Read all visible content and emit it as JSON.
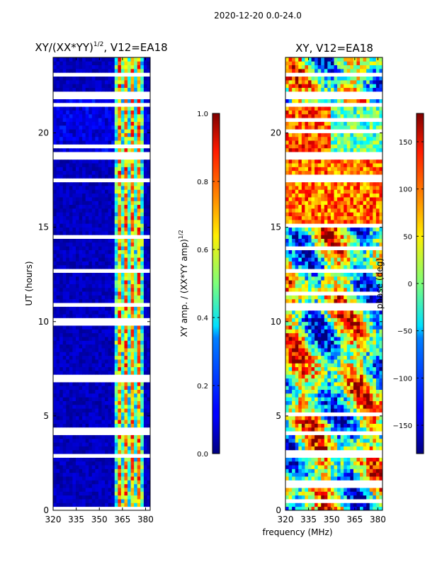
{
  "suptitle": "2020-12-20 0.0-24.0",
  "xlabel_shared": "frequency (MHz)",
  "chart_data": [
    {
      "type": "heatmap",
      "title_main": "XY/(XX*YY)",
      "title_sup": "1/2",
      "title_tail": ", V12=EA18",
      "ylabel": "UT (hours)",
      "xlim": [
        320,
        383
      ],
      "ylim": [
        0,
        24
      ],
      "xticks": [
        320,
        335,
        350,
        365,
        380
      ],
      "yticks": [
        0,
        5,
        10,
        15,
        20
      ],
      "colorbar": {
        "label_main": "XY amp. / (XX*YY amp)",
        "label_sup": "1/2",
        "range": [
          0.0,
          1.0
        ],
        "ticks": [
          "0.0",
          "0.2",
          "0.4",
          "0.6",
          "0.8",
          "1.0"
        ],
        "tick_values": [
          0.0,
          0.2,
          0.4,
          0.6,
          0.8,
          1.0
        ],
        "colormap": "jet"
      },
      "gap_bands_hours": [
        [
          18.6,
          19.0
        ],
        [
          21.8,
          22.2
        ],
        [
          23.0,
          23.1
        ],
        [
          12.7,
          12.85
        ],
        [
          10.8,
          10.9
        ],
        [
          2.8,
          2.95
        ]
      ],
      "bright_channel_band_mhz": [
        360,
        378
      ]
    },
    {
      "type": "heatmap",
      "title": "XY, V12=EA18",
      "xlim": [
        320,
        383
      ],
      "ylim": [
        0,
        24
      ],
      "xticks": [
        320,
        335,
        350,
        365,
        380
      ],
      "yticks": [
        0,
        5,
        10,
        15,
        20
      ],
      "colorbar": {
        "label": "phase (deg)",
        "range": [
          -180,
          180
        ],
        "ticks": [
          "−150",
          "−100",
          "−50",
          "0",
          "50",
          "100",
          "150"
        ],
        "tick_values": [
          -150,
          -100,
          -50,
          0,
          50,
          100,
          150
        ],
        "colormap": "jet"
      },
      "gap_bands_hours": [
        [
          18.6,
          19.0
        ],
        [
          21.8,
          22.2
        ],
        [
          23.0,
          23.1
        ],
        [
          12.7,
          12.85
        ],
        [
          10.8,
          10.9
        ],
        [
          2.8,
          2.95
        ]
      ]
    }
  ]
}
